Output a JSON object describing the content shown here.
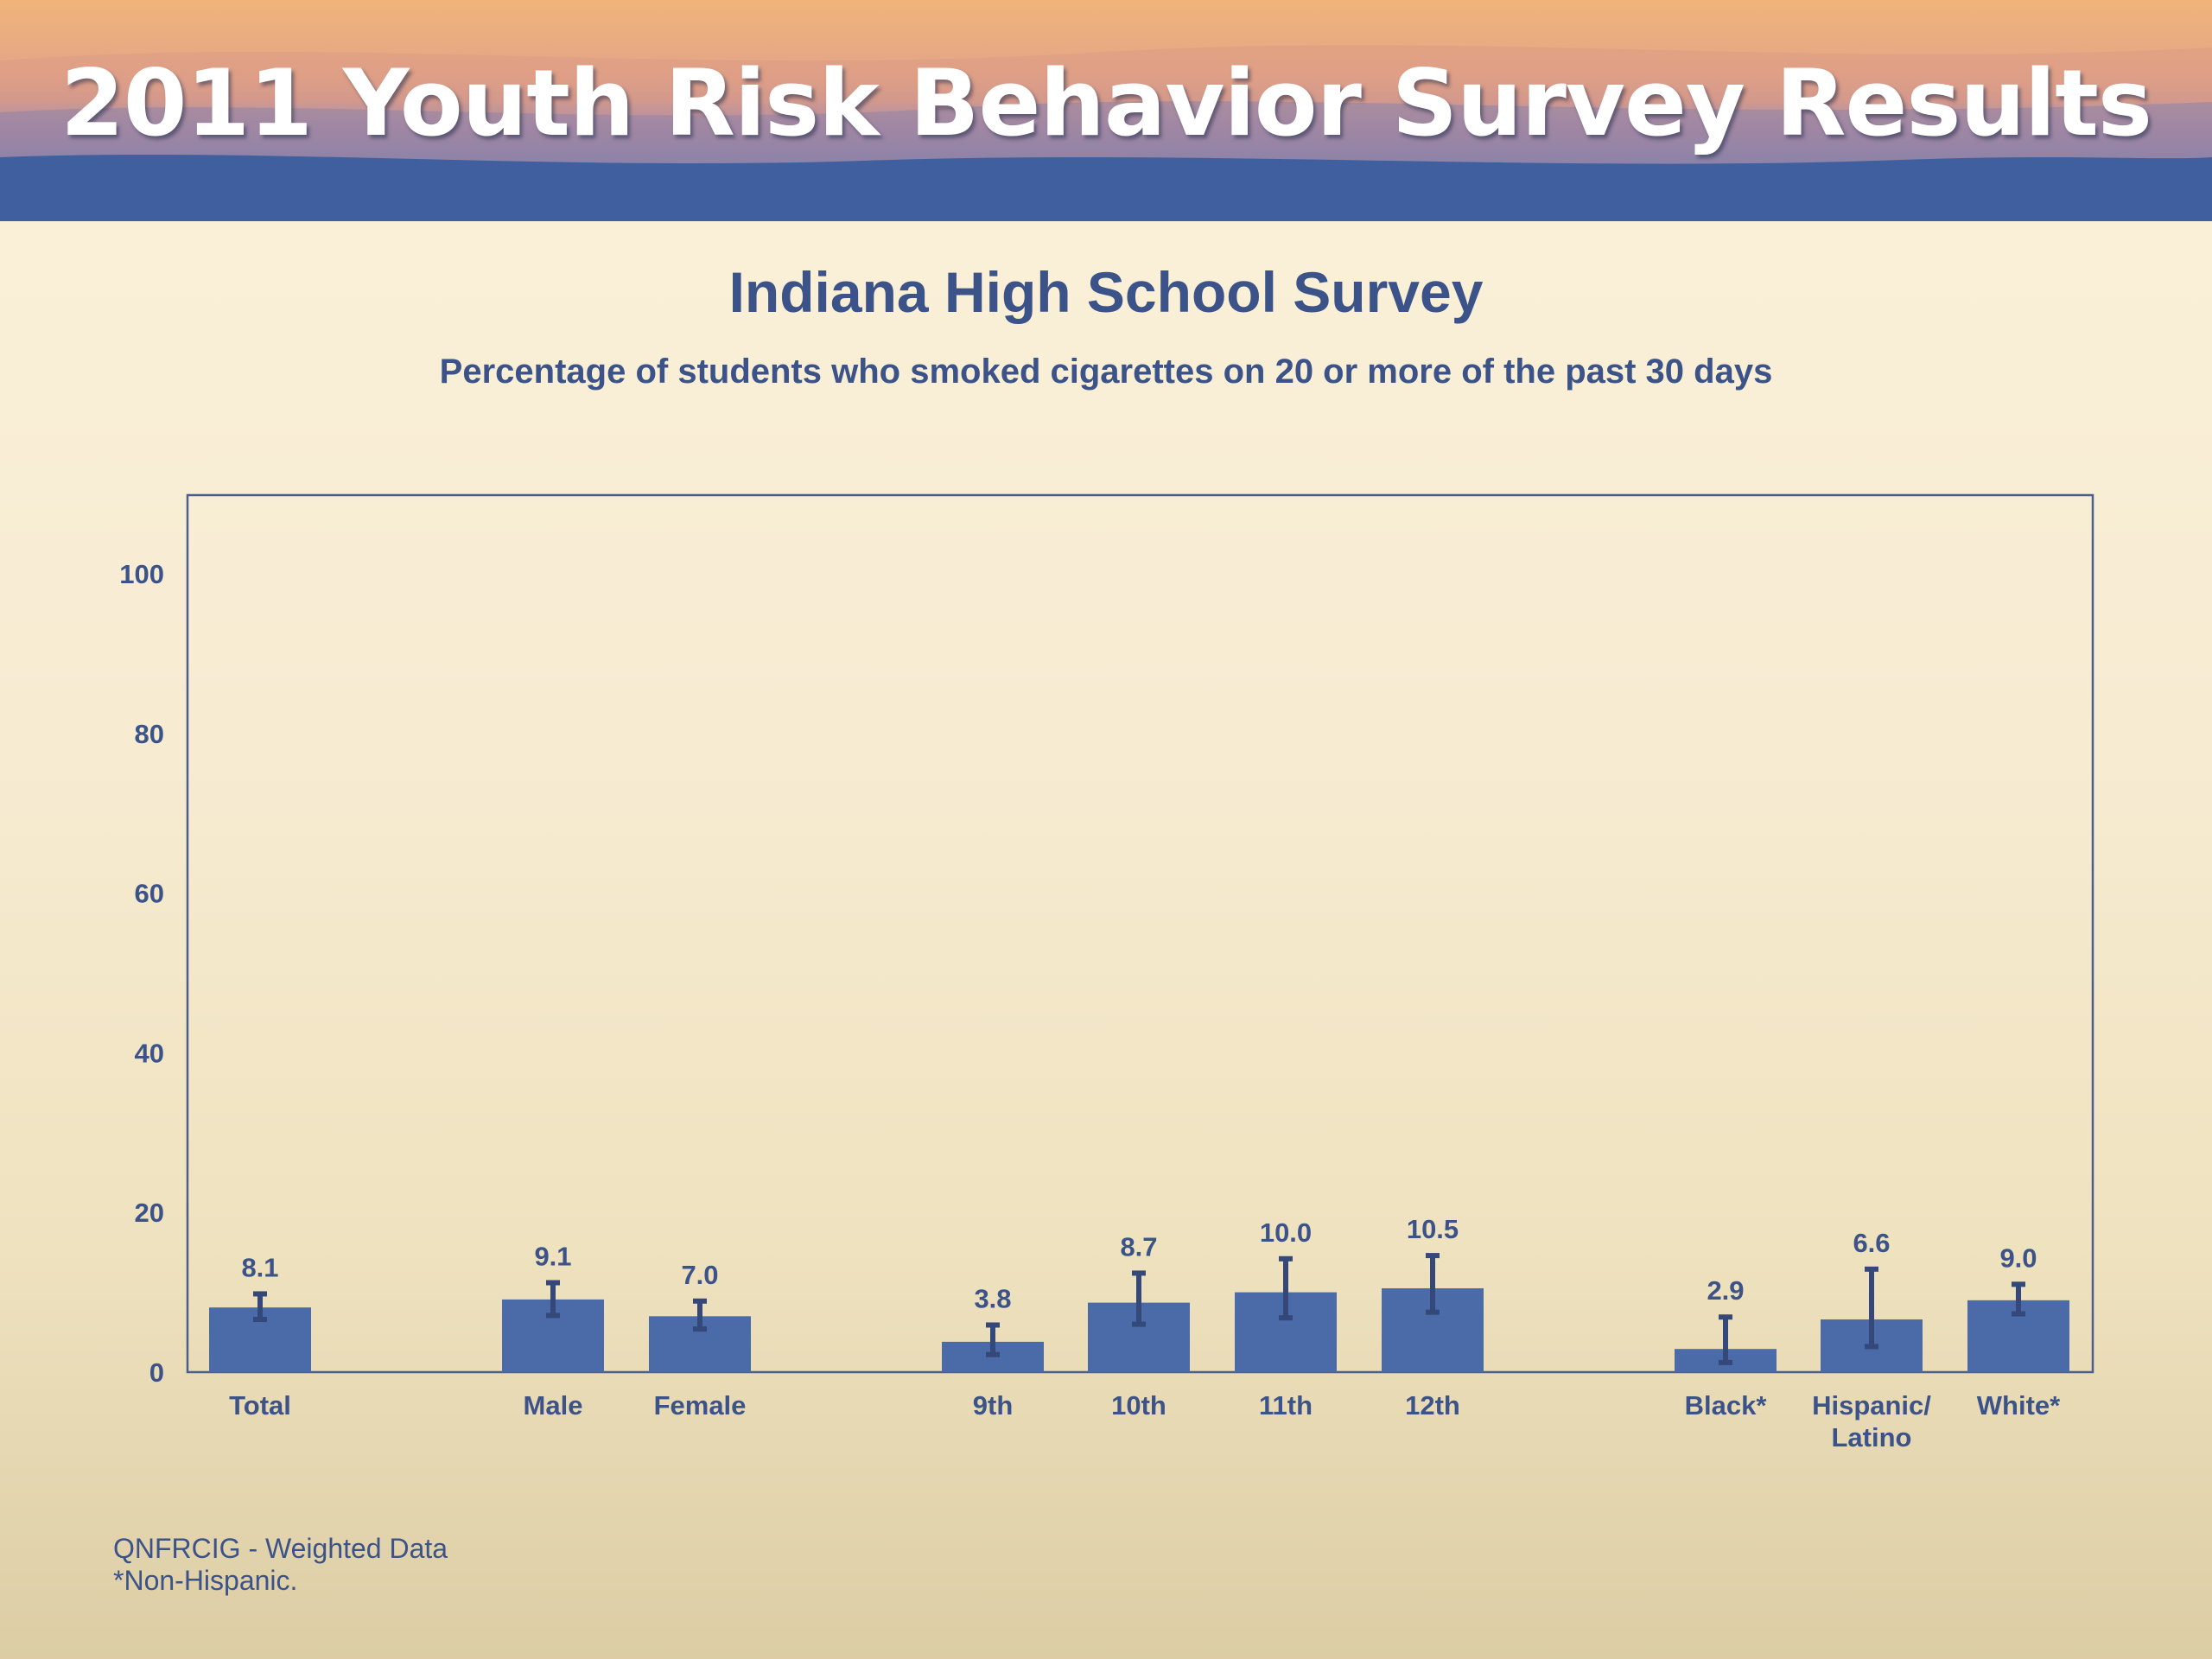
{
  "header": {
    "title": "2011 Youth Risk Behavior Survey Results"
  },
  "chart_data": {
    "type": "bar",
    "title": "Indiana High School Survey",
    "subtitle": "Percentage of students who smoked cigarettes on 20 or more of the past 30 days",
    "xlabel": "",
    "ylabel": "",
    "ylim": [
      0,
      100
    ],
    "yticks": [
      "0",
      "20",
      "40",
      "60",
      "80",
      "100"
    ],
    "categories": [
      "Total",
      "Male",
      "Female",
      "9th",
      "10th",
      "11th",
      "12th",
      "Black*",
      "Hispanic/Latino",
      "White*"
    ],
    "category_lines": [
      [
        "Total"
      ],
      [
        "Male"
      ],
      [
        "Female"
      ],
      [
        "9th"
      ],
      [
        "10th"
      ],
      [
        "11th"
      ],
      [
        "12th"
      ],
      [
        "Black*"
      ],
      [
        "Hispanic/",
        "Latino"
      ],
      [
        "White*"
      ]
    ],
    "values": [
      8.1,
      9.1,
      7.0,
      3.8,
      8.7,
      10.0,
      10.5,
      2.9,
      6.6,
      9.0
    ],
    "value_labels": [
      "8.1",
      "9.1",
      "7.0",
      "3.8",
      "8.7",
      "10.0",
      "10.5",
      "2.9",
      "6.6",
      "9.0"
    ],
    "error_low": [
      6.6,
      7.1,
      5.4,
      2.2,
      6.0,
      6.8,
      7.5,
      1.2,
      3.2,
      7.3
    ],
    "error_high": [
      9.8,
      11.2,
      8.9,
      5.9,
      12.4,
      14.2,
      14.6,
      6.9,
      12.9,
      11.0
    ],
    "grid": false,
    "legend": "none",
    "bar_color": "#4a6aa8",
    "text_color": "#3b5388"
  },
  "footnotes": [
    "QNFRCIG - Weighted Data",
    "*Non-Hispanic."
  ]
}
